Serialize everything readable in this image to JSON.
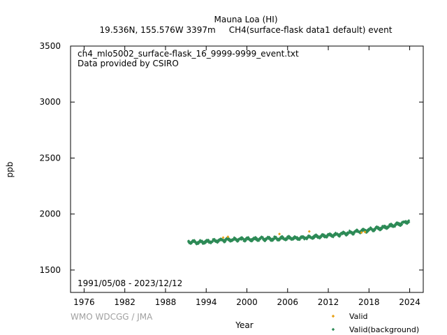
{
  "chart_data": {
    "type": "scatter",
    "title": "Mauna Loa (HI)",
    "subtitle": "19.536N, 155.576W 3397m     CH4(surface-flask data1 default) event",
    "ylabel": "ppb",
    "xlabel": "Year",
    "annotation_file": "ch4_mlo5002_surface-flask_16_9999-9999_event.txt",
    "annotation_provider": "Data provided by CSIRO",
    "date_range": "1991/05/08 - 2023/12/12",
    "credit": "WMO WDCGG / JMA",
    "xlim": [
      1974,
      2026
    ],
    "ylim": [
      1300,
      3500
    ],
    "x_ticks": [
      1976,
      1982,
      1988,
      1994,
      2000,
      2006,
      2012,
      2018,
      2024
    ],
    "y_ticks": [
      1500,
      2000,
      2500,
      3000,
      3500
    ],
    "grid": false,
    "legend_position": "bottom-right",
    "series": [
      {
        "name": "Valid",
        "color": "#e6a117",
        "marker": "diamond",
        "x": [
          1996.5,
          1997.2,
          2004.8,
          2009.2,
          2016.9,
          2017.4
        ],
        "y": [
          1790,
          1797,
          1822,
          1845,
          1835,
          1840
        ]
      },
      {
        "name": "Valid(background)",
        "color": "#2e8b57",
        "marker": "diamond",
        "trend": {
          "x": [
            1991.35,
            1992.5,
            1994.0,
            1996.0,
            1998.0,
            2000.0,
            2002.0,
            2004.0,
            2006.0,
            2008.0,
            2010.0,
            2012.0,
            2014.0,
            2016.0,
            2018.0,
            2020.0,
            2022.0,
            2023.95
          ],
          "y": [
            1752,
            1748,
            1752,
            1765,
            1772,
            1775,
            1778,
            1780,
            1783,
            1785,
            1798,
            1808,
            1822,
            1840,
            1858,
            1878,
            1905,
            1938
          ]
        },
        "seasonal_amplitude": 10,
        "scatter_spread": 12,
        "interval_years": 0.025
      }
    ]
  }
}
